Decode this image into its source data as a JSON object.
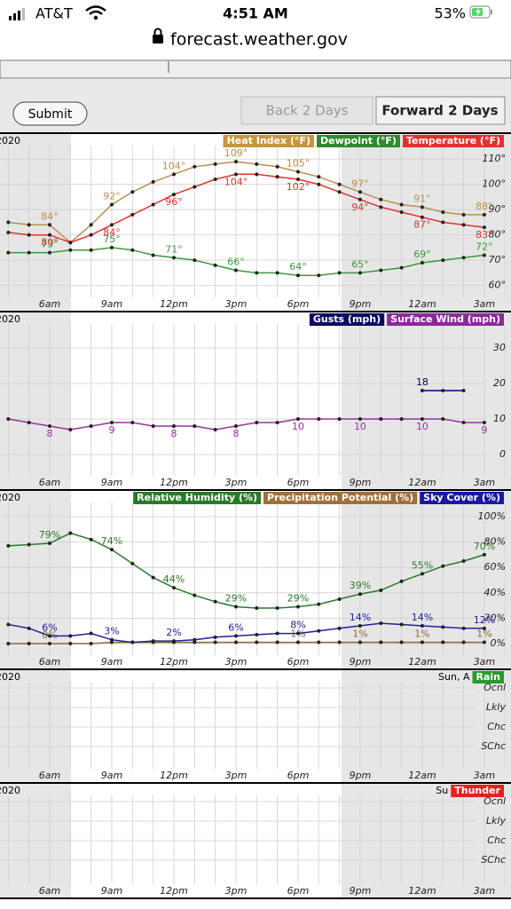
{
  "status": {
    "carrier": "AT&T",
    "time": "4:51 AM",
    "battery": "53%"
  },
  "url": "forecast.weather.gov",
  "buttons": {
    "submit": "Submit",
    "back": "Back 2 Days",
    "forward": "Forward 2 Days"
  },
  "x_labels": [
    "6am",
    "9am",
    "12pm",
    "3pm",
    "6pm",
    "9pm",
    "12am",
    "3am"
  ],
  "panels": [
    {
      "year": "2020",
      "ylim": [
        56,
        115
      ],
      "yticks": [
        {
          "value": 60,
          "label": "60°"
        },
        {
          "value": 70,
          "label": "70°"
        },
        {
          "value": 80,
          "label": "80°"
        },
        {
          "value": 90,
          "label": "90°"
        },
        {
          "value": 100,
          "label": "100°"
        },
        {
          "value": 110,
          "label": "110°"
        }
      ],
      "series": [
        {
          "name": "Heat Index (°F)",
          "color": "#b8904e",
          "legend_color": "#c8963c",
          "values": [
            85,
            84,
            84,
            77,
            84,
            92,
            97,
            101,
            104,
            107,
            108,
            109,
            108,
            107,
            105,
            103,
            100,
            97,
            94,
            92,
            91,
            89,
            88,
            88
          ],
          "value_labels": [
            null,
            null,
            "84°",
            null,
            null,
            "92°",
            null,
            null,
            "104°",
            null,
            null,
            "109°",
            null,
            null,
            "105°",
            null,
            null,
            "97°",
            null,
            null,
            "91°",
            null,
            null,
            "88°"
          ]
        },
        {
          "name": "Dewpoint (°F)",
          "color": "#3a9a3a",
          "legend_color": "#2e8b2e",
          "values": [
            73,
            73,
            73,
            74,
            74,
            75,
            74,
            72,
            71,
            70,
            68,
            66,
            65,
            65,
            64,
            64,
            65,
            65,
            66,
            67,
            69,
            70,
            71,
            72
          ],
          "value_labels": [
            null,
            null,
            "73°",
            null,
            null,
            "75°",
            null,
            null,
            "71°",
            null,
            null,
            "66°",
            null,
            null,
            "64°",
            null,
            null,
            "65°",
            null,
            null,
            "69°",
            null,
            null,
            "72°"
          ]
        },
        {
          "name": "Temperature (°F)",
          "color": "#e03030",
          "legend_color": "#e53030",
          "values": [
            81,
            80,
            80,
            77,
            80,
            84,
            88,
            92,
            96,
            99,
            102,
            104,
            104,
            103,
            102,
            100,
            97,
            94,
            91,
            89,
            87,
            85,
            84,
            83
          ],
          "value_labels": [
            null,
            null,
            "80°",
            null,
            null,
            "84°",
            null,
            null,
            "96°",
            null,
            null,
            "104°",
            null,
            null,
            "102°",
            null,
            null,
            "94°",
            null,
            null,
            "87°",
            null,
            null,
            "83°"
          ]
        }
      ]
    },
    {
      "year": "2020",
      "ylim": [
        -4.5,
        35.5
      ],
      "yticks": [
        0,
        10,
        20,
        30
      ],
      "series": [
        {
          "name": "Gusts (mph)",
          "color": "#000070",
          "legend_color": "#0a0a60",
          "values": [
            null,
            null,
            null,
            null,
            null,
            null,
            null,
            null,
            null,
            null,
            null,
            null,
            null,
            null,
            null,
            null,
            null,
            null,
            null,
            null,
            18,
            18,
            18,
            null
          ],
          "value_labels": [
            null,
            null,
            null,
            null,
            null,
            null,
            null,
            null,
            null,
            null,
            null,
            null,
            null,
            null,
            null,
            null,
            null,
            null,
            null,
            null,
            "18",
            null,
            null,
            null
          ]
        },
        {
          "name": "Surface Wind (mph)",
          "color": "#9a30a0",
          "legend_color": "#8a2a9a",
          "values": [
            10,
            9,
            8,
            7,
            8,
            9,
            9,
            8,
            8,
            8,
            7,
            8,
            9,
            9,
            10,
            10,
            10,
            10,
            10,
            10,
            10,
            10,
            9,
            9
          ],
          "value_labels": [
            null,
            null,
            "8",
            null,
            null,
            "9",
            null,
            null,
            "8",
            null,
            null,
            "8",
            null,
            null,
            "10",
            null,
            null,
            "10",
            null,
            null,
            "10",
            null,
            null,
            "9"
          ]
        }
      ]
    },
    {
      "year": "2020",
      "ylim": [
        -7,
        108.4
      ],
      "yticks": [
        {
          "value": 0,
          "label": "0%"
        },
        {
          "value": 20,
          "label": "20%"
        },
        {
          "value": 40,
          "label": "40%"
        },
        {
          "value": 60,
          "label": "60%"
        },
        {
          "value": 80,
          "label": "80%"
        },
        {
          "value": 100,
          "label": "100%"
        }
      ],
      "series": [
        {
          "name": "Relative Humidity (%)",
          "color": "#2a7a2a",
          "legend_color": "#2a7a2a",
          "values": [
            77,
            78,
            79,
            87,
            82,
            74,
            63,
            52,
            44,
            38,
            33,
            29,
            28,
            28,
            29,
            31,
            35,
            39,
            42,
            49,
            55,
            61,
            65,
            70
          ],
          "value_labels": [
            null,
            null,
            "79%",
            null,
            null,
            "74%",
            null,
            null,
            "44%",
            null,
            null,
            "29%",
            null,
            null,
            "29%",
            null,
            null,
            "39%",
            null,
            null,
            "55%",
            null,
            null,
            "70%"
          ]
        },
        {
          "name": "Precipitation Potential (%)",
          "color": "#8a6a3a",
          "legend_color": "#a0703a",
          "values": [
            0,
            0,
            0,
            0,
            0,
            1,
            1,
            1,
            1,
            1,
            1,
            1,
            1,
            1,
            1,
            1,
            1,
            1,
            1,
            1,
            1,
            1,
            1,
            1
          ],
          "value_labels": [
            null,
            null,
            "0%",
            null,
            null,
            null,
            null,
            null,
            null,
            null,
            null,
            null,
            null,
            null,
            "1%",
            null,
            null,
            "1%",
            null,
            null,
            "1%",
            null,
            null,
            "1%"
          ]
        },
        {
          "name": "Sky Cover (%)",
          "color": "#2020a0",
          "legend_color": "#1a1aa0",
          "values": [
            15,
            12,
            6,
            6,
            8,
            3,
            1,
            2,
            2,
            3,
            5,
            6,
            7,
            8,
            8,
            10,
            12,
            14,
            16,
            15,
            14,
            13,
            12,
            12
          ],
          "value_labels": [
            null,
            null,
            "6%",
            null,
            null,
            "3%",
            null,
            null,
            "2%",
            null,
            null,
            "6%",
            null,
            null,
            "8%",
            null,
            null,
            "14%",
            null,
            null,
            "14%",
            null,
            null,
            "12%"
          ]
        }
      ]
    }
  ],
  "category_panels": [
    {
      "year": "2020",
      "header": "Sun, A",
      "legend": "Rain",
      "legend_color": "#2a9a2a",
      "categories": [
        "Ocnl",
        "Lkly",
        "Chc",
        "SChc"
      ]
    },
    {
      "year": "2020",
      "header": "Su",
      "legend": "Thunder",
      "legend_color": "#e52020",
      "categories": [
        "Ocnl",
        "Lkly",
        "Chc",
        "SChc"
      ]
    }
  ]
}
